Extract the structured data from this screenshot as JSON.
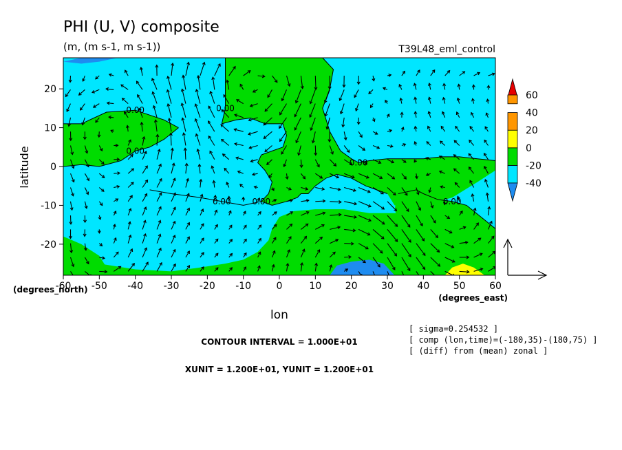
{
  "chart_data": {
    "type": "heatmap",
    "title": "PHI (U, V) composite",
    "units_line": "(m, (m s-1, m s-1))",
    "dataset": "T39L48_eml_control",
    "xlabel": "lon",
    "ylabel": "latitude",
    "x_unit_label": "(degrees_east)",
    "y_unit_label": "(degrees_north)",
    "xlim": [
      -60,
      60
    ],
    "ylim": [
      -28,
      28
    ],
    "x_ticks": [
      -60,
      -50,
      -40,
      -30,
      -20,
      -10,
      0,
      10,
      20,
      30,
      40,
      50,
      60
    ],
    "x_tick_labels": [
      "-60",
      "-50",
      "-40",
      "-30",
      "-20",
      "-10",
      "0",
      "10",
      "20",
      "30",
      "40",
      "50",
      "60"
    ],
    "y_ticks": [
      -20,
      -10,
      0,
      10,
      20
    ],
    "y_tick_labels": [
      "-20",
      "-10",
      "0",
      "10",
      "20"
    ],
    "grid": false,
    "colorbar": {
      "levels": [
        -40,
        -20,
        0,
        20,
        40,
        60
      ],
      "labels": [
        "-40",
        "-20",
        "0",
        "20",
        "40",
        "60"
      ],
      "colors": [
        "#1e8cf0",
        "#00e6ff",
        "#00dc00",
        "#ffff00",
        "#ff9600",
        "#e60000"
      ]
    },
    "contour_label": "0.00",
    "contour_interval_text": "CONTOUR INTERVAL = 1.000E+01",
    "vector_units_text": "XUNIT = 1.200E+01, YUNIT = 1.200E+01",
    "info_lines": [
      "[ sigma=0.254532 ]",
      "[ comp (lon,time)=(-180,35)-(180,75) ]",
      "[ (diff) from (mean) zonal ]"
    ],
    "regions": [
      {
        "level": "0 to 20",
        "polygon": [
          [
            -60,
            11
          ],
          [
            -55,
            11
          ],
          [
            -48,
            14
          ],
          [
            -40,
            14.5
          ],
          [
            -32,
            12
          ],
          [
            -28,
            10
          ],
          [
            -32,
            7
          ],
          [
            -36,
            5
          ],
          [
            -40,
            4
          ],
          [
            -44,
            1.5
          ],
          [
            -50,
            0
          ],
          [
            -55,
            0.5
          ],
          [
            -60,
            0
          ]
        ]
      },
      {
        "level": "0 to 20",
        "polygon": [
          [
            -15,
            28
          ],
          [
            -5,
            28
          ],
          [
            5,
            28
          ],
          [
            12,
            28
          ],
          [
            15,
            25
          ],
          [
            14,
            20
          ],
          [
            12,
            15
          ],
          [
            14,
            9
          ],
          [
            17,
            4
          ],
          [
            20,
            2
          ],
          [
            22,
            1
          ],
          [
            25,
            1.5
          ],
          [
            30,
            2
          ],
          [
            40,
            2
          ],
          [
            45,
            2.5
          ],
          [
            50,
            2.5
          ],
          [
            55,
            2
          ],
          [
            60,
            1.5
          ],
          [
            60,
            -1
          ],
          [
            55,
            -4
          ],
          [
            48,
            -8
          ],
          [
            40,
            -10
          ],
          [
            35,
            -12
          ],
          [
            25,
            -12
          ],
          [
            18,
            -11
          ],
          [
            10,
            -11
          ],
          [
            4,
            -11.5
          ],
          [
            0,
            -13
          ],
          [
            -2,
            -16
          ],
          [
            -3,
            -19
          ],
          [
            -6,
            -22
          ],
          [
            -10,
            -24
          ],
          [
            -15,
            -25
          ],
          [
            -22,
            -26
          ],
          [
            -30,
            -27
          ],
          [
            -40,
            -26.5
          ],
          [
            -50,
            -25
          ],
          [
            -60,
            -24
          ],
          [
            -60,
            -28
          ],
          [
            60,
            -28
          ],
          [
            60,
            -25
          ],
          [
            57,
            -19
          ],
          [
            52,
            -14
          ],
          [
            45,
            -12
          ],
          [
            38,
            -11
          ],
          [
            32,
            -10
          ],
          [
            30,
            -7
          ],
          [
            24,
            -5
          ],
          [
            22,
            -4
          ],
          [
            20,
            -3
          ],
          [
            16,
            -2
          ],
          [
            13,
            -3
          ],
          [
            10,
            -5
          ],
          [
            8,
            -7
          ],
          [
            6,
            -7
          ],
          [
            5,
            -8
          ],
          [
            2,
            -9
          ],
          [
            -2,
            -10
          ],
          [
            -5,
            -9
          ],
          [
            -3,
            -7
          ],
          [
            -2,
            -4
          ],
          [
            -4,
            -1
          ],
          [
            -6,
            1
          ],
          [
            -5,
            3
          ],
          [
            -2,
            4
          ],
          [
            1,
            5
          ],
          [
            2,
            8
          ],
          [
            1,
            11
          ],
          [
            -4,
            11
          ],
          [
            -8,
            12.5
          ],
          [
            -12,
            12
          ],
          [
            -16,
            11
          ],
          [
            -15,
            15
          ],
          [
            -15,
            20
          ]
        ]
      },
      {
        "level": "0 to 20",
        "polygon": [
          [
            33,
            -7
          ],
          [
            38,
            -6
          ],
          [
            40,
            -7
          ],
          [
            44,
            -8.5
          ],
          [
            48,
            -9
          ],
          [
            52,
            -10
          ],
          [
            56,
            -13
          ],
          [
            60,
            -16
          ],
          [
            60,
            -25
          ],
          [
            57,
            -21
          ],
          [
            52,
            -18
          ],
          [
            46,
            -17
          ],
          [
            40,
            -18
          ],
          [
            36,
            -19
          ],
          [
            33,
            -14
          ],
          [
            32,
            -11
          ]
        ]
      },
      {
        "level": "0 to 20",
        "polygon": [
          [
            -60,
            -18
          ],
          [
            -55,
            -20
          ],
          [
            -50,
            -23
          ],
          [
            -48,
            -26
          ],
          [
            -46,
            -28
          ],
          [
            -60,
            -28
          ]
        ]
      },
      {
        "level": "-40 to -20",
        "polygon": [
          [
            -60,
            27
          ],
          [
            -55,
            28
          ],
          [
            -45,
            28
          ],
          [
            -50,
            27
          ],
          [
            -55,
            26.5
          ]
        ]
      },
      {
        "level": "-40 to -20",
        "polygon": [
          [
            14,
            -28
          ],
          [
            16,
            -25.5
          ],
          [
            20,
            -24.5
          ],
          [
            25,
            -24
          ],
          [
            29,
            -25
          ],
          [
            32,
            -28
          ]
        ]
      },
      {
        "level": "20 to 40",
        "polygon": [
          [
            46,
            -28
          ],
          [
            48,
            -26
          ],
          [
            51,
            -25
          ],
          [
            54,
            -26
          ],
          [
            57,
            -28
          ]
        ]
      }
    ],
    "contour_lines": [
      {
        "label": "0.00",
        "points": [
          [
            -60,
            11
          ],
          [
            -55,
            11
          ],
          [
            -48,
            14
          ],
          [
            -40,
            14.5
          ],
          [
            -32,
            12
          ],
          [
            -28,
            10
          ]
        ]
      },
      {
        "label": "0.00",
        "points": [
          [
            -60,
            0
          ],
          [
            -55,
            0.5
          ],
          [
            -50,
            0
          ],
          [
            -44,
            1.5
          ],
          [
            -40,
            4
          ],
          [
            -36,
            5
          ],
          [
            -32,
            7
          ],
          [
            -28,
            10
          ]
        ]
      },
      {
        "label": "0.00",
        "points": [
          [
            -16,
            11
          ],
          [
            -12,
            12
          ],
          [
            -8,
            12.5
          ],
          [
            -4,
            11
          ],
          [
            1,
            11
          ],
          [
            2,
            8
          ],
          [
            1,
            5
          ],
          [
            -2,
            4
          ],
          [
            -5,
            3
          ],
          [
            -6,
            1
          ],
          [
            -4,
            -1
          ],
          [
            -2,
            -4
          ],
          [
            -3,
            -7
          ],
          [
            -5,
            -9
          ],
          [
            -2,
            -10
          ],
          [
            2,
            -9
          ],
          [
            5,
            -8
          ],
          [
            6,
            -7
          ],
          [
            8,
            -7
          ],
          [
            10,
            -5
          ],
          [
            13,
            -3
          ],
          [
            16,
            -2
          ],
          [
            20,
            -3
          ],
          [
            22,
            -4
          ],
          [
            24,
            -5
          ],
          [
            30,
            -7
          ]
        ]
      },
      {
        "label": "0.00",
        "points": [
          [
            -15,
            28
          ],
          [
            -15,
            20
          ],
          [
            -15,
            15
          ],
          [
            -16,
            11
          ]
        ]
      },
      {
        "label": "0.00",
        "points": [
          [
            12,
            28
          ],
          [
            15,
            25
          ],
          [
            14,
            20
          ],
          [
            12,
            15
          ],
          [
            14,
            9
          ],
          [
            17,
            4
          ],
          [
            20,
            2
          ],
          [
            22,
            1
          ],
          [
            25,
            1.5
          ],
          [
            30,
            2
          ],
          [
            40,
            2
          ],
          [
            45,
            2.5
          ],
          [
            50,
            2.5
          ],
          [
            55,
            2
          ],
          [
            60,
            1.5
          ]
        ]
      },
      {
        "label": "0.00",
        "points": [
          [
            -36,
            -6
          ],
          [
            -30,
            -7
          ],
          [
            -22,
            -8
          ],
          [
            -16,
            -9
          ],
          [
            -10,
            -10
          ],
          [
            -5,
            -9
          ]
        ]
      },
      {
        "label": "0.00",
        "points": [
          [
            33,
            -7
          ],
          [
            38,
            -6
          ],
          [
            40,
            -7
          ],
          [
            44,
            -8.5
          ],
          [
            48,
            -9
          ],
          [
            52,
            -10
          ],
          [
            56,
            -13
          ],
          [
            60,
            -16
          ]
        ]
      }
    ],
    "reference_vector": {
      "u": 12,
      "v": 12
    }
  }
}
